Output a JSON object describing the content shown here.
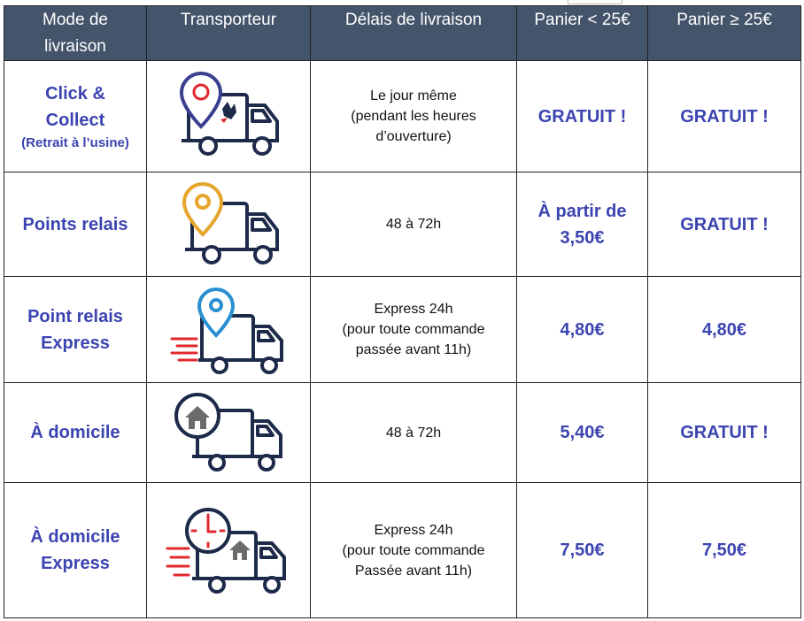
{
  "headers": [
    "Mode de livraison",
    "Transporteur",
    "Délais de livraison",
    "Panier < 25€",
    "Panier ≥ 25€"
  ],
  "header_line1": "Mode de",
  "header_line2": "livraison",
  "rows": [
    {
      "mode_lines": [
        "Click &",
        "Collect"
      ],
      "mode_sub": "(Retrait à l’usine)",
      "icon": "truck-pin-logo-icon",
      "delay_lines": [
        "Le jour même",
        "(pendant les heures",
        "d’ouverture)"
      ],
      "price_low": [
        "GRATUIT !"
      ],
      "price_high": [
        "GRATUIT !"
      ]
    },
    {
      "mode_lines": [
        "Points relais"
      ],
      "mode_sub": "",
      "icon": "truck-pin-orange-icon",
      "delay_lines": [
        "48 à 72h"
      ],
      "price_low": [
        "À partir de",
        "3,50€"
      ],
      "price_high": [
        "GRATUIT !"
      ]
    },
    {
      "mode_lines": [
        "Point relais",
        "Express"
      ],
      "mode_sub": "",
      "icon": "fast-truck-pin-blue-icon",
      "delay_lines": [
        "Express 24h",
        "(pour toute commande",
        "passée avant 11h)"
      ],
      "price_low": [
        "4,80€"
      ],
      "price_high": [
        "4,80€"
      ]
    },
    {
      "mode_lines": [
        "À domicile"
      ],
      "mode_sub": "",
      "icon": "truck-home-icon",
      "delay_lines": [
        "48 à 72h"
      ],
      "price_low": [
        "5,40€"
      ],
      "price_high": [
        "GRATUIT !"
      ]
    },
    {
      "mode_lines": [
        "À domicile",
        "Express"
      ],
      "mode_sub": "",
      "icon": "fast-truck-clock-home-icon",
      "delay_lines": [
        "Express 24h",
        "(pour toute commande",
        "Passée avant 11h)"
      ],
      "price_low": [
        "7,50€"
      ],
      "price_high": [
        "7,50€"
      ]
    }
  ],
  "colors": {
    "header_bg": "#44546a",
    "accent_text": "#3b44b0",
    "icon_navy": "#1e2a4a",
    "pin_purple": "#3a3f8f",
    "pin_orange": "#e6a52b",
    "pin_blue": "#2a8fd0",
    "speed_red": "#e0282e"
  }
}
